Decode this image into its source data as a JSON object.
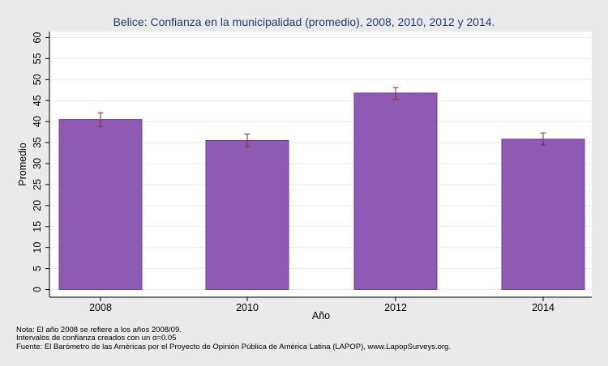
{
  "chart_data": {
    "type": "bar",
    "title": "Belice: Confianza en la municipalidad (promedio), 2008, 2010, 2012 y 2014.",
    "xlabel": "Año",
    "ylabel": "Promedio",
    "categories": [
      "2008",
      "2010",
      "2012",
      "2014"
    ],
    "values": [
      40.5,
      35.5,
      46.8,
      35.8
    ],
    "ci_low": [
      38.8,
      34.0,
      45.3,
      34.4
    ],
    "ci_high": [
      42.1,
      37.0,
      48.1,
      37.3
    ],
    "ylim": [
      0,
      60
    ],
    "yticks": [
      0,
      5,
      10,
      15,
      20,
      25,
      30,
      35,
      40,
      45,
      50,
      55,
      60
    ],
    "grid": true,
    "colors": {
      "bar": "#8e5ab3",
      "bar_edge": "#6e3f95",
      "error": "#8b2b2b",
      "title": "#1f3b73",
      "plot_bg": "#ffffff",
      "background": "#eaeaea"
    }
  },
  "notes": [
    "Nota: El año 2008 se refiere a los años 2008/09.",
    "Intervalos de confianza creados con un α=0.05",
    "Fuente: El Barómetro de las Américas por el Proyecto de Opinión Pública de América Latina (LAPOP), www.LapopSurveys.org."
  ]
}
